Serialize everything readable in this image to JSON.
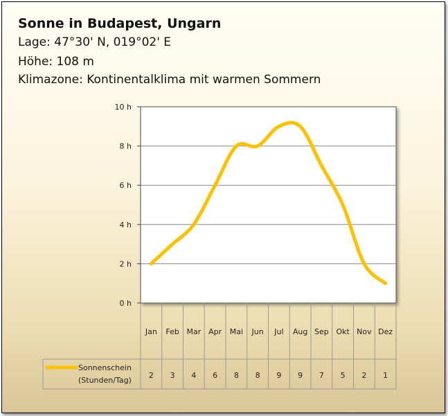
{
  "header": {
    "title": "Sonne in Budapest, Ungarn",
    "lage": "Lage: 47°30' N, 019°02' E",
    "hoehe": "Höhe: 108 m",
    "klimazone": "Klimazone: Kontinentalklima mit warmen Sommern"
  },
  "chart_data": {
    "type": "line",
    "title": "",
    "xlabel": "",
    "ylabel": "",
    "categories": [
      "Jan",
      "Feb",
      "Mar",
      "Apr",
      "Mai",
      "Jun",
      "Jul",
      "Aug",
      "Sep",
      "Okt",
      "Nov",
      "Dez"
    ],
    "ylim": [
      0,
      10
    ],
    "yticks": [
      "0 h",
      "2 h",
      "4 h",
      "6 h",
      "8 h",
      "10 h"
    ],
    "grid": true,
    "legend": "bottom-left, in data table",
    "series": [
      {
        "name": "Sonnenschein",
        "unit_label": "(Stunden/Tag)",
        "color": "#ffc000",
        "values": [
          2,
          3,
          4,
          6,
          8,
          8,
          9,
          9,
          7,
          5,
          2,
          1
        ],
        "table_values": [
          "2",
          "3",
          "4",
          "6",
          "8",
          "8",
          "9",
          "9",
          "7",
          "5",
          "2",
          "1"
        ]
      }
    ]
  }
}
